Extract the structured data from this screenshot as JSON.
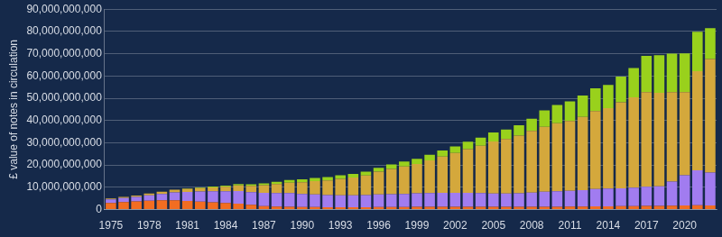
{
  "chart_data": {
    "type": "bar",
    "stacked": true,
    "grid": true,
    "y_label": "£ value of notes in circulation",
    "categories": [
      "1975",
      null,
      null,
      "1978",
      null,
      null,
      "1981",
      null,
      null,
      "1984",
      null,
      null,
      "1987",
      null,
      null,
      "1990",
      null,
      null,
      "1993",
      null,
      null,
      "1996",
      null,
      null,
      "1999",
      null,
      null,
      "2002",
      null,
      null,
      "2005",
      null,
      null,
      "2008",
      null,
      null,
      "2011",
      null,
      null,
      "2014",
      null,
      null,
      "2017",
      null,
      null,
      "2020",
      null,
      null
    ],
    "ylim": [
      0,
      90000000000
    ],
    "yticks": [
      0,
      {
        "value": 10000000000,
        "label": "10,000,000,000"
      },
      {
        "value": 20000000000,
        "label": "20,000,000,000"
      },
      {
        "value": 30000000000,
        "label": "30,000,000,000"
      },
      {
        "value": 40000000000,
        "label": "40,000,000,000"
      },
      {
        "value": 50000000000,
        "label": "50,000,000,000"
      },
      {
        "value": 60000000000,
        "label": "60,000,000,000"
      },
      {
        "value": 70000000000,
        "label": "70,000,000,000"
      },
      {
        "value": 80000000000,
        "label": "80,000,000,000"
      },
      {
        "value": 90000000000,
        "label": "90,000,000,000"
      }
    ],
    "series": [
      {
        "color": "#f26d21",
        "values": [
          3000000000,
          3400000000,
          3700000000,
          4000000000,
          4200000000,
          4200000000,
          3900000000,
          3600000000,
          3300000000,
          3000000000,
          2700000000,
          2200000000,
          1600000000,
          1400000000,
          1300000000,
          1200000000,
          1200000000,
          1100000000,
          1100000000,
          1100000000,
          1100000000,
          1200000000,
          1200000000,
          1200000000,
          1300000000,
          1300000000,
          1300000000,
          1300000000,
          1300000000,
          1300000000,
          1300000000,
          1300000000,
          1300000000,
          1300000000,
          1300000000,
          1300000000,
          1400000000,
          1400000000,
          1500000000,
          1500000000,
          1600000000,
          1600000000,
          1700000000,
          1700000000,
          1800000000,
          1900000000,
          2000000000,
          1900000000
        ]
      },
      {
        "color": "#a17cf0",
        "values": [
          1600000000,
          1800000000,
          2000000000,
          2400000000,
          2800000000,
          3500000000,
          4000000000,
          4500000000,
          4900000000,
          5200000000,
          5600000000,
          5600000000,
          5900000000,
          6000000000,
          6100000000,
          5800000000,
          5600000000,
          5400000000,
          5300000000,
          5300000000,
          5400000000,
          5600000000,
          5700000000,
          5800000000,
          6000000000,
          6100000000,
          6200000000,
          6200000000,
          6200000000,
          6100000000,
          5900000000,
          5900000000,
          6000000000,
          6300000000,
          6700000000,
          6900000000,
          7000000000,
          7300000000,
          7700000000,
          7900000000,
          8000000000,
          8300000000,
          8600000000,
          8800000000,
          10800000000,
          13500000000,
          15600000000,
          14700000000
        ]
      },
      {
        "color": "#d4a83c",
        "values": [
          400000000,
          500000000,
          600000000,
          800000000,
          1000000000,
          1200000000,
          1400000000,
          1600000000,
          1800000000,
          2100000000,
          2600000000,
          2900000000,
          3500000000,
          4100000000,
          4700000000,
          5300000000,
          6000000000,
          6600000000,
          7400000000,
          8000000000,
          8800000000,
          10200000000,
          11400000000,
          12400000000,
          13200000000,
          14700000000,
          16300000000,
          17900000000,
          19700000000,
          21300000000,
          23400000000,
          24500000000,
          25900000000,
          27700000000,
          29200000000,
          30600000000,
          31400000000,
          32900000000,
          35100000000,
          36200000000,
          38600000000,
          40500000000,
          42500000000,
          41900000000,
          40100000000,
          37400000000,
          44600000000,
          51000000000
        ]
      },
      {
        "color": "#99d11c",
        "values": [
          0,
          0,
          0,
          0,
          0,
          0,
          200000000,
          300000000,
          400000000,
          500000000,
          600000000,
          700000000,
          800000000,
          1000000000,
          1200000000,
          1300000000,
          1400000000,
          1500000000,
          1600000000,
          1600000000,
          1700000000,
          1800000000,
          2000000000,
          2200000000,
          2300000000,
          2500000000,
          2700000000,
          3000000000,
          3300000000,
          3600000000,
          4000000000,
          4300000000,
          4700000000,
          5500000000,
          7400000000,
          8200000000,
          8800000000,
          9600000000,
          10200000000,
          10400000000,
          11500000000,
          13200000000,
          16200000000,
          16900000000,
          17400000000,
          17400000000,
          17700000000,
          13900000000
        ]
      }
    ]
  }
}
